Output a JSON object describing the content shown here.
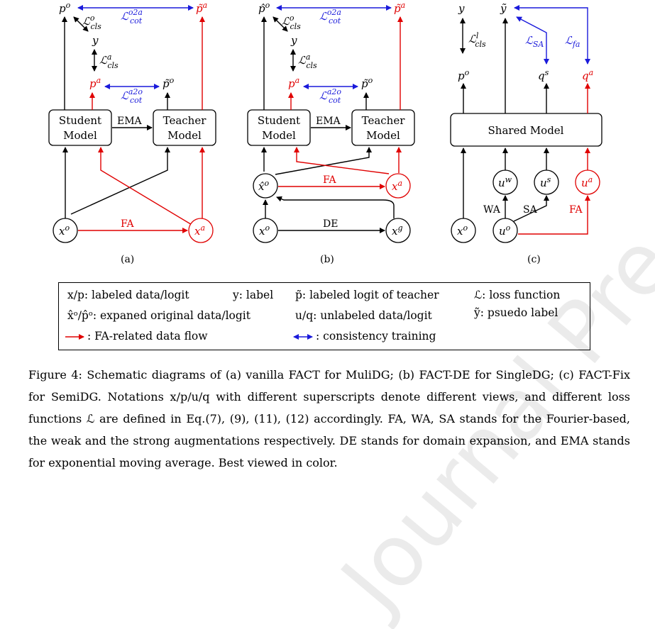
{
  "panels": {
    "a": {
      "label": "(a)",
      "student_line1": "Student",
      "student_line2": "Model",
      "teacher_line1": "Teacher",
      "teacher_line2": "Model",
      "ema": "EMA",
      "fa": "FA",
      "loss_cls_o": "ℒ",
      "loss_cls_o_sub": "cls",
      "loss_cls_o_sup": "o",
      "loss_cot_o2a": "ℒ",
      "loss_cot_o2a_sub": "cot",
      "loss_cot_o2a_sup": "o2a",
      "loss_cls_a": "ℒ",
      "loss_cls_a_sub": "cls",
      "loss_cls_a_sup": "a",
      "loss_cot_a2o": "ℒ",
      "loss_cot_a2o_sub": "cot",
      "loss_cot_a2o_sup": "a2o",
      "p_o": "p",
      "p_o_sup": "o",
      "pt_a": "p̃",
      "pt_a_sup": "a",
      "y": "y",
      "p_a": "p",
      "p_a_sup": "a",
      "pt_o": "p̃",
      "pt_o_sup": "o",
      "x_o": "x",
      "x_o_sup": "o",
      "x_a": "x",
      "x_a_sup": "a"
    },
    "b": {
      "label": "(b)",
      "student_line1": "Student",
      "student_line2": "Model",
      "teacher_line1": "Teacher",
      "teacher_line2": "Model",
      "ema": "EMA",
      "fa": "FA",
      "de": "DE",
      "p_o": "p̂",
      "p_o_sup": "o",
      "x_hat": "x̂",
      "x_hat_sup": "o",
      "x_g": "x",
      "x_g_sup": "g"
    },
    "c": {
      "label": "(c)",
      "shared": "Shared Model",
      "wa": "WA",
      "sa": "SA",
      "fa": "FA",
      "loss_cls_l_sup": "l",
      "loss_sa_sub": "SA",
      "loss_fa_sub": "fa",
      "y_tilde": "ỹ",
      "q_s_sup": "s",
      "q_a_sup": "a",
      "u": "u",
      "u_w_sup": "w",
      "u_s_sup": "s",
      "u_a_sup": "a",
      "u_o_sup": "o",
      "q": "q"
    }
  },
  "legend": {
    "l1": "x/p: labeled data/logit",
    "l2": "y: label",
    "l3": "p̃: labeled logit of teacher",
    "l4": "ℒ: loss function",
    "l5": "x̂ᵒ/p̂ᵒ: expaned original data/logit",
    "l6": "u/q: unlabeled data/logit",
    "l7": "ỹ:  psuedo label",
    "l8": ": FA-related data flow",
    "l9": ": consistency training"
  },
  "caption": "Figure 4: Schematic diagrams of (a) vanilla FACT for MuliDG; (b) FACT-DE for SingleDG; (c) FACT-Fix for SemiDG. Notations x/p/u/q with different superscripts denote different views, and different loss functions ℒ are defined in Eq.(7), (9), (11), (12) accordingly.  FA, WA, SA stands for the Fourier-based, the weak and the strong augmentations respectively. DE stands for domain expansion, and EMA stands for exponential moving average. Best viewed in color.",
  "watermark": "Journal Pre-proof",
  "colors": {
    "fa_flow": "#e00000",
    "consistency": "#1a1adb"
  }
}
